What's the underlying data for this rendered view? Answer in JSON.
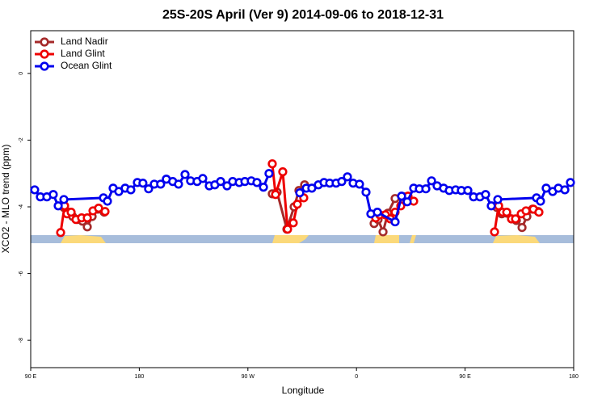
{
  "chart_data": {
    "type": "line",
    "title": "25S-20S April (Ver 9)   2014-09-06 to 2018-12-31",
    "x_label": "Longitude",
    "y_label": "XCO2 - MLO trend (ppm)",
    "xlim": [
      90,
      540
    ],
    "xticks": [
      {
        "value": 90,
        "label": "90 E"
      },
      {
        "value": 180,
        "label": "180"
      },
      {
        "value": 270,
        "label": "90 W"
      },
      {
        "value": 360,
        "label": "0"
      },
      {
        "value": 450,
        "label": "90 E"
      },
      {
        "value": 540,
        "label": "180"
      }
    ],
    "ylim": [
      -8.82,
      1.28
    ],
    "yticks": [
      -8,
      -6,
      -4,
      -2,
      0
    ],
    "legend": "top-left",
    "series": [
      {
        "name": "Land Nadir",
        "color": "#a52a2a",
        "x": [
          117.5,
          121.5,
          124.8,
          128.8,
          132.9,
          136.9,
          140.9,
          145.6,
          150.9,
          null,
          290.2,
          294.2,
          302.3,
          308.3,
          312.3,
          317,
          null,
          374.6,
          377.9,
          382,
          386,
          392,
          399.4,
          null,
          476.4,
          480.4,
          484.5,
          488.5,
          492.5,
          497.2,
          501.2,
          505.9,
          510.6
        ],
        "values": [
          -4.02,
          -4.16,
          -4.29,
          -4.38,
          -4.43,
          -4.6,
          -4.29,
          -4.07,
          -4.16,
          null,
          -3.61,
          -3.56,
          -4.67,
          -4.0,
          -3.51,
          -3.34,
          null,
          -4.5,
          -4.38,
          -4.75,
          -4.19,
          -3.75,
          -3.7,
          null,
          -4.02,
          -4.21,
          -4.19,
          -4.36,
          -4.41,
          -4.62,
          -4.29,
          -4.07,
          -4.14
        ]
      },
      {
        "name": "Land Glint",
        "color": "#ee0000",
        "x": [
          114.8,
          118.1,
          120.1,
          123.5,
          127.5,
          132.2,
          136.9,
          141.6,
          146.3,
          151.6,
          null,
          290.2,
          292.9,
          298.9,
          302.9,
          307.6,
          311,
          316.3,
          null,
          375.9,
          379.3,
          384,
          388,
          392,
          396.7,
          402.7,
          407.4,
          null,
          474.4,
          477.8,
          481.1,
          484.5,
          488.5,
          491.8,
          496.5,
          500.5,
          506.6,
          511.2
        ],
        "values": [
          -4.77,
          -3.97,
          -4.21,
          -4.16,
          -4.38,
          -4.33,
          -4.33,
          -4.12,
          -4.04,
          -4.14,
          null,
          -2.71,
          -3.63,
          -2.95,
          -4.67,
          -4.48,
          -3.92,
          -3.73,
          null,
          -4.33,
          -4.24,
          -4.24,
          -4.36,
          -4.16,
          -3.97,
          -3.68,
          -3.83,
          null,
          -4.75,
          -3.97,
          -4.16,
          -4.16,
          -4.36,
          -4.36,
          -4.21,
          -4.12,
          -4.07,
          -4.16
        ]
      },
      {
        "name": "Ocean Glint",
        "color": "#0000ee",
        "x": [
          93.3,
          98,
          103.4,
          108.7,
          112.8,
          117.5,
          150.3,
          153.6,
          158.3,
          163,
          168.3,
          173,
          178.4,
          183,
          187.7,
          192.4,
          197.7,
          202.4,
          207.7,
          212.5,
          217.9,
          222.5,
          227.9,
          232.6,
          238,
          242.6,
          247.4,
          252.7,
          257.4,
          262.8,
          267.5,
          272.8,
          277.5,
          282.9,
          287.5,
          null,
          313,
          318.4,
          323,
          328.4,
          333.1,
          337.8,
          343.1,
          347.8,
          352.5,
          357.2,
          362.5,
          367.9,
          371.9,
          377.3,
          392,
          397.4,
          402,
          407.4,
          412.1,
          417.5,
          422.2,
          426.8,
          432.2,
          436.9,
          442.2,
          446.9,
          452.3,
          457,
          462.3,
          467,
          471.7,
          477.1,
          509.2,
          512.5,
          517.2,
          522.6,
          527.3,
          532.7,
          537.3
        ],
        "values": [
          -3.49,
          -3.7,
          -3.7,
          -3.63,
          -3.97,
          -3.78,
          -3.73,
          -3.83,
          -3.44,
          -3.54,
          -3.44,
          -3.49,
          -3.27,
          -3.29,
          -3.46,
          -3.32,
          -3.32,
          -3.17,
          -3.24,
          -3.32,
          -3.03,
          -3.22,
          -3.24,
          -3.15,
          -3.37,
          -3.34,
          -3.24,
          -3.37,
          -3.24,
          -3.27,
          -3.24,
          -3.22,
          -3.27,
          -3.41,
          -3.0,
          null,
          -3.58,
          -3.44,
          -3.44,
          -3.34,
          -3.27,
          -3.29,
          -3.29,
          -3.24,
          -3.1,
          -3.29,
          -3.32,
          -3.56,
          -4.21,
          -4.16,
          -4.45,
          -3.68,
          -3.85,
          -3.44,
          -3.46,
          -3.46,
          -3.22,
          -3.37,
          -3.44,
          -3.51,
          -3.49,
          -3.51,
          -3.51,
          -3.7,
          -3.7,
          -3.63,
          -3.97,
          -3.78,
          -3.73,
          -3.83,
          -3.44,
          -3.54,
          -3.44,
          -3.49,
          -3.27
        ]
      }
    ]
  }
}
